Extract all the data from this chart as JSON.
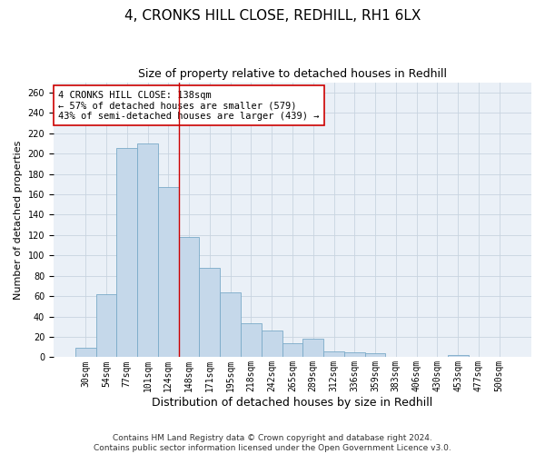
{
  "title": "4, CRONKS HILL CLOSE, REDHILL, RH1 6LX",
  "subtitle": "Size of property relative to detached houses in Redhill",
  "xlabel": "Distribution of detached houses by size in Redhill",
  "ylabel": "Number of detached properties",
  "bar_labels": [
    "30sqm",
    "54sqm",
    "77sqm",
    "101sqm",
    "124sqm",
    "148sqm",
    "171sqm",
    "195sqm",
    "218sqm",
    "242sqm",
    "265sqm",
    "289sqm",
    "312sqm",
    "336sqm",
    "359sqm",
    "383sqm",
    "406sqm",
    "430sqm",
    "453sqm",
    "477sqm",
    "500sqm"
  ],
  "bar_values": [
    9,
    62,
    205,
    210,
    167,
    118,
    88,
    64,
    33,
    26,
    14,
    18,
    6,
    5,
    4,
    0,
    0,
    0,
    2,
    0,
    0
  ],
  "bar_color": "#c5d8ea",
  "bar_edge_color": "#7aaac8",
  "grid_color": "#c8d4e0",
  "background_color": "#eaf0f7",
  "annotation_box_text": "4 CRONKS HILL CLOSE: 138sqm\n← 57% of detached houses are smaller (579)\n43% of semi-detached houses are larger (439) →",
  "vline_x_idx": 4,
  "vline_color": "#cc0000",
  "ylim": [
    0,
    270
  ],
  "yticks": [
    0,
    20,
    40,
    60,
    80,
    100,
    120,
    140,
    160,
    180,
    200,
    220,
    240,
    260
  ],
  "footer": "Contains HM Land Registry data © Crown copyright and database right 2024.\nContains public sector information licensed under the Open Government Licence v3.0.",
  "title_fontsize": 11,
  "subtitle_fontsize": 9,
  "xlabel_fontsize": 9,
  "ylabel_fontsize": 8,
  "tick_fontsize": 7,
  "annotation_fontsize": 7.5,
  "footer_fontsize": 6.5
}
